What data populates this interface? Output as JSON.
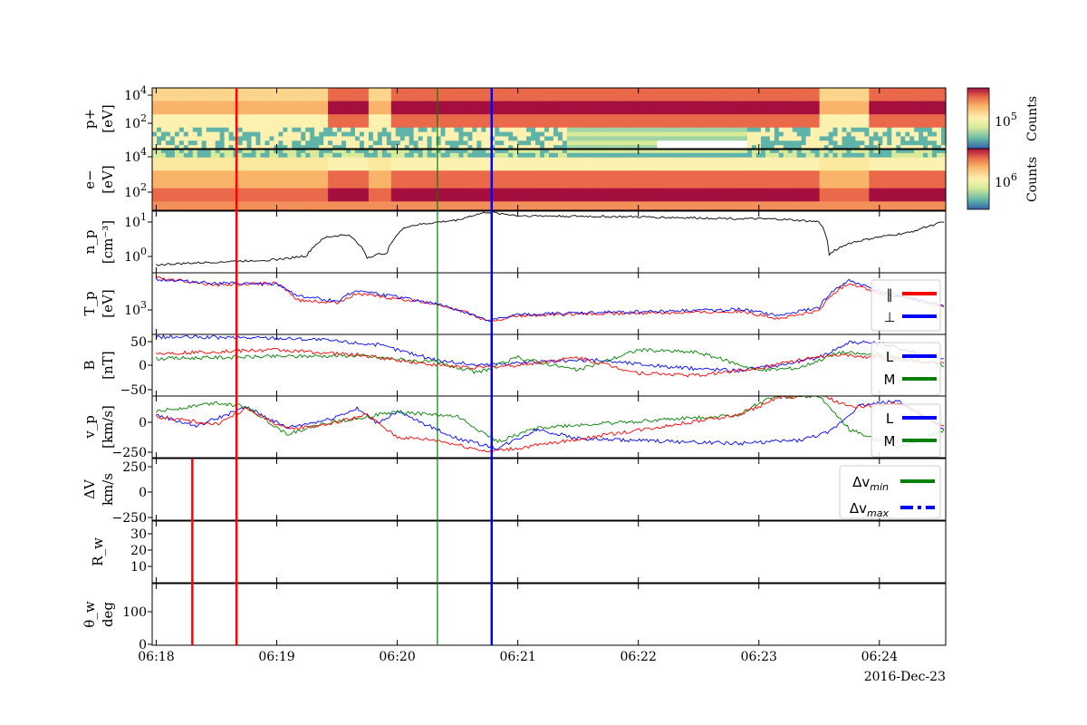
{
  "chart_data": {
    "type": "line",
    "date_label": "2016-Dec-23",
    "x_ticks": [
      "06:18",
      "06:19",
      "06:20",
      "06:21",
      "06:22",
      "06:23",
      "06:24"
    ],
    "x_range": [
      "06:17:58",
      "06:24:33"
    ],
    "panels": [
      {
        "id": "proton_spectrogram",
        "type": "heatmap",
        "ylabel": [
          "p+",
          "[eV]"
        ],
        "yscale": "log",
        "yticks": [
          "10^4",
          "10^2"
        ],
        "colorbar": {
          "label": "Counts",
          "ticks": [
            "10^5"
          ]
        }
      },
      {
        "id": "electron_spectrogram",
        "type": "heatmap",
        "ylabel": [
          "e−",
          "[eV]"
        ],
        "yscale": "log",
        "yticks": [
          "10^4",
          "10^2"
        ],
        "colorbar": {
          "label": "Counts",
          "ticks": [
            "10^6"
          ]
        }
      },
      {
        "id": "density",
        "ylabel": [
          "n_p",
          "[cm⁻³]"
        ],
        "yscale": "log",
        "yticks": [
          "10^1",
          "10^0"
        ],
        "series": [
          {
            "color": "#000000",
            "x": [
              "06:18:00",
              "06:18:30",
              "06:19:00",
              "06:19:15",
              "06:19:25",
              "06:19:35",
              "06:19:45",
              "06:19:55",
              "06:20:05",
              "06:20:30",
              "06:20:45",
              "06:21:00",
              "06:22:00",
              "06:22:45",
              "06:23:10",
              "06:23:30",
              "06:23:35",
              "06:23:45",
              "06:24:00",
              "06:24:15",
              "06:24:33"
            ],
            "y": [
              0.5,
              0.6,
              0.7,
              0.9,
              3,
              3.5,
              0.8,
              1.1,
              6,
              9,
              15,
              12,
              11,
              10,
              9.5,
              8,
              1,
              2,
              3,
              4,
              8
            ]
          }
        ]
      },
      {
        "id": "temperature",
        "ylabel": [
          "T_p",
          "[eV]"
        ],
        "yscale": "log",
        "yticks": [
          "10^3"
        ],
        "legend": [
          "∥",
          "⊥"
        ],
        "series": [
          {
            "name": "∥",
            "color": "#ff0000",
            "x": [
              "06:18:00",
              "06:18:30",
              "06:19:00",
              "06:19:10",
              "06:19:30",
              "06:19:40",
              "06:19:55",
              "06:20:20",
              "06:20:45",
              "06:21:00",
              "06:21:20",
              "06:22:50",
              "06:23:10",
              "06:23:30",
              "06:23:45",
              "06:24:00",
              "06:24:33"
            ],
            "y": [
              4800,
              3500,
              3800,
              1800,
              1600,
              2400,
              2000,
              1500,
              700,
              900,
              950,
              1100,
              800,
              1100,
              3800,
              2400,
              1300
            ]
          },
          {
            "name": "⊥",
            "color": "#0000ff",
            "x": [
              "06:18:00",
              "06:18:30",
              "06:19:00",
              "06:19:10",
              "06:19:30",
              "06:19:40",
              "06:19:55",
              "06:20:20",
              "06:20:45",
              "06:21:00",
              "06:21:20",
              "06:22:50",
              "06:23:10",
              "06:23:30",
              "06:23:45",
              "06:24:00",
              "06:24:33"
            ],
            "y": [
              4500,
              3800,
              3600,
              2200,
              1700,
              2800,
              2200,
              1500,
              700,
              950,
              1000,
              1200,
              900,
              1300,
              4200,
              2600,
              1300
            ]
          }
        ]
      },
      {
        "id": "magnetic_field",
        "ylabel": [
          "B",
          "[nT]"
        ],
        "yticks": [
          "50",
          "0",
          "−50"
        ],
        "ylim": [
          -65,
          55
        ],
        "legend": [
          "L",
          "M"
        ],
        "series": [
          {
            "name": "L",
            "color": "#0000ff",
            "x": [
              "06:18:00",
              "06:18:30",
              "06:19:00",
              "06:19:20",
              "06:19:50",
              "06:20:20",
              "06:20:40",
              "06:21:00",
              "06:21:40",
              "06:22:20",
              "06:22:50",
              "06:23:10",
              "06:23:30",
              "06:23:45",
              "06:24:00",
              "06:24:33"
            ],
            "y": [
              50,
              49,
              48,
              45,
              35,
              5,
              -5,
              0,
              5,
              -10,
              -15,
              -5,
              10,
              40,
              38,
              5
            ]
          },
          {
            "name": "M",
            "color": "#008000",
            "x": [
              "06:18:00",
              "06:19:00",
              "06:19:40",
              "06:20:20",
              "06:20:40",
              "06:21:00",
              "06:21:30",
              "06:22:00",
              "06:22:30",
              "06:23:00",
              "06:23:20",
              "06:23:40",
              "06:24:00",
              "06:24:33"
            ],
            "y": [
              8,
              12,
              14,
              0,
              -20,
              10,
              -15,
              25,
              20,
              -15,
              -10,
              20,
              15,
              -5
            ]
          },
          {
            "name": "",
            "color": "#ff0000",
            "x": [
              "06:18:00",
              "06:19:00",
              "06:19:40",
              "06:20:20",
              "06:20:40",
              "06:21:00",
              "06:21:30",
              "06:22:00",
              "06:22:30",
              "06:23:00",
              "06:23:20",
              "06:23:40",
              "06:24:00",
              "06:24:33"
            ],
            "y": [
              18,
              25,
              15,
              -5,
              -10,
              -5,
              10,
              -20,
              -25,
              -10,
              5,
              15,
              10,
              0
            ]
          }
        ]
      },
      {
        "id": "velocity",
        "ylabel": [
          "v_p",
          "[km/s]"
        ],
        "yticks": [
          "0",
          "−250"
        ],
        "ylim": [
          -280,
          110
        ],
        "legend": [
          "L",
          "M"
        ],
        "series": [
          {
            "name": "L",
            "color": "#0000ff",
            "x": [
              "06:18:00",
              "06:18:20",
              "06:18:45",
              "06:19:05",
              "06:19:25",
              "06:19:40",
              "06:19:50",
              "06:20:00",
              "06:20:30",
              "06:20:50",
              "06:21:10",
              "06:21:30",
              "06:22:50",
              "06:23:20",
              "06:23:35",
              "06:23:50",
              "06:24:10",
              "06:24:33"
            ],
            "y": [
              -10,
              -80,
              40,
              -90,
              -40,
              30,
              -60,
              10,
              -160,
              -220,
              -100,
              -160,
              -190,
              -170,
              -120,
              50,
              80,
              -110
            ]
          },
          {
            "name": "M",
            "color": "#008000",
            "x": [
              "06:18:00",
              "06:18:30",
              "06:18:45",
              "06:19:05",
              "06:19:25",
              "06:19:45",
              "06:20:00",
              "06:20:30",
              "06:20:50",
              "06:21:10",
              "06:22:50",
              "06:23:05",
              "06:23:30",
              "06:23:45",
              "06:24:10",
              "06:24:33"
            ],
            "y": [
              10,
              70,
              40,
              -130,
              -60,
              -20,
              10,
              -20,
              -180,
              -90,
              -10,
              100,
              110,
              -100,
              -220,
              -100
            ]
          },
          {
            "name": "",
            "color": "#ff0000",
            "x": [
              "06:18:00",
              "06:18:30",
              "06:18:45",
              "06:19:05",
              "06:19:25",
              "06:19:45",
              "06:20:00",
              "06:20:20",
              "06:20:45",
              "06:21:00",
              "06:22:50",
              "06:23:10",
              "06:23:30",
              "06:23:45",
              "06:24:10",
              "06:24:33"
            ],
            "y": [
              -20,
              -70,
              30,
              -100,
              -70,
              -10,
              -150,
              -170,
              -240,
              -220,
              -10,
              100,
              120,
              40,
              60,
              -90
            ]
          }
        ]
      },
      {
        "id": "delta_v",
        "ylabel": [
          "ΔV",
          "km/s"
        ],
        "yticks": [
          "250",
          "0",
          "−250"
        ],
        "ylim": [
          -290,
          290
        ],
        "legend": [
          "Δv_min",
          "Δv_max"
        ],
        "series": []
      },
      {
        "id": "walen_ratio",
        "ylabel": [
          "R_w"
        ],
        "yticks": [
          "30",
          "20",
          "10"
        ],
        "ylim": [
          0,
          38
        ],
        "series": []
      },
      {
        "id": "walen_angle",
        "ylabel": [
          "θ_w",
          "deg"
        ],
        "yticks": [
          "100",
          "0"
        ],
        "ylim": [
          0,
          180
        ],
        "series": []
      }
    ],
    "vertical_markers": [
      {
        "time": "06:18:40",
        "color": "#ff0000",
        "panels": "all"
      },
      {
        "time": "06:20:20",
        "color": "#008000",
        "panels": "all"
      },
      {
        "time": "06:20:47",
        "color": "#0000ff",
        "panels": "all"
      },
      {
        "time": "06:18:18",
        "color": "#ff0000",
        "panels": "bottom_three"
      }
    ]
  }
}
